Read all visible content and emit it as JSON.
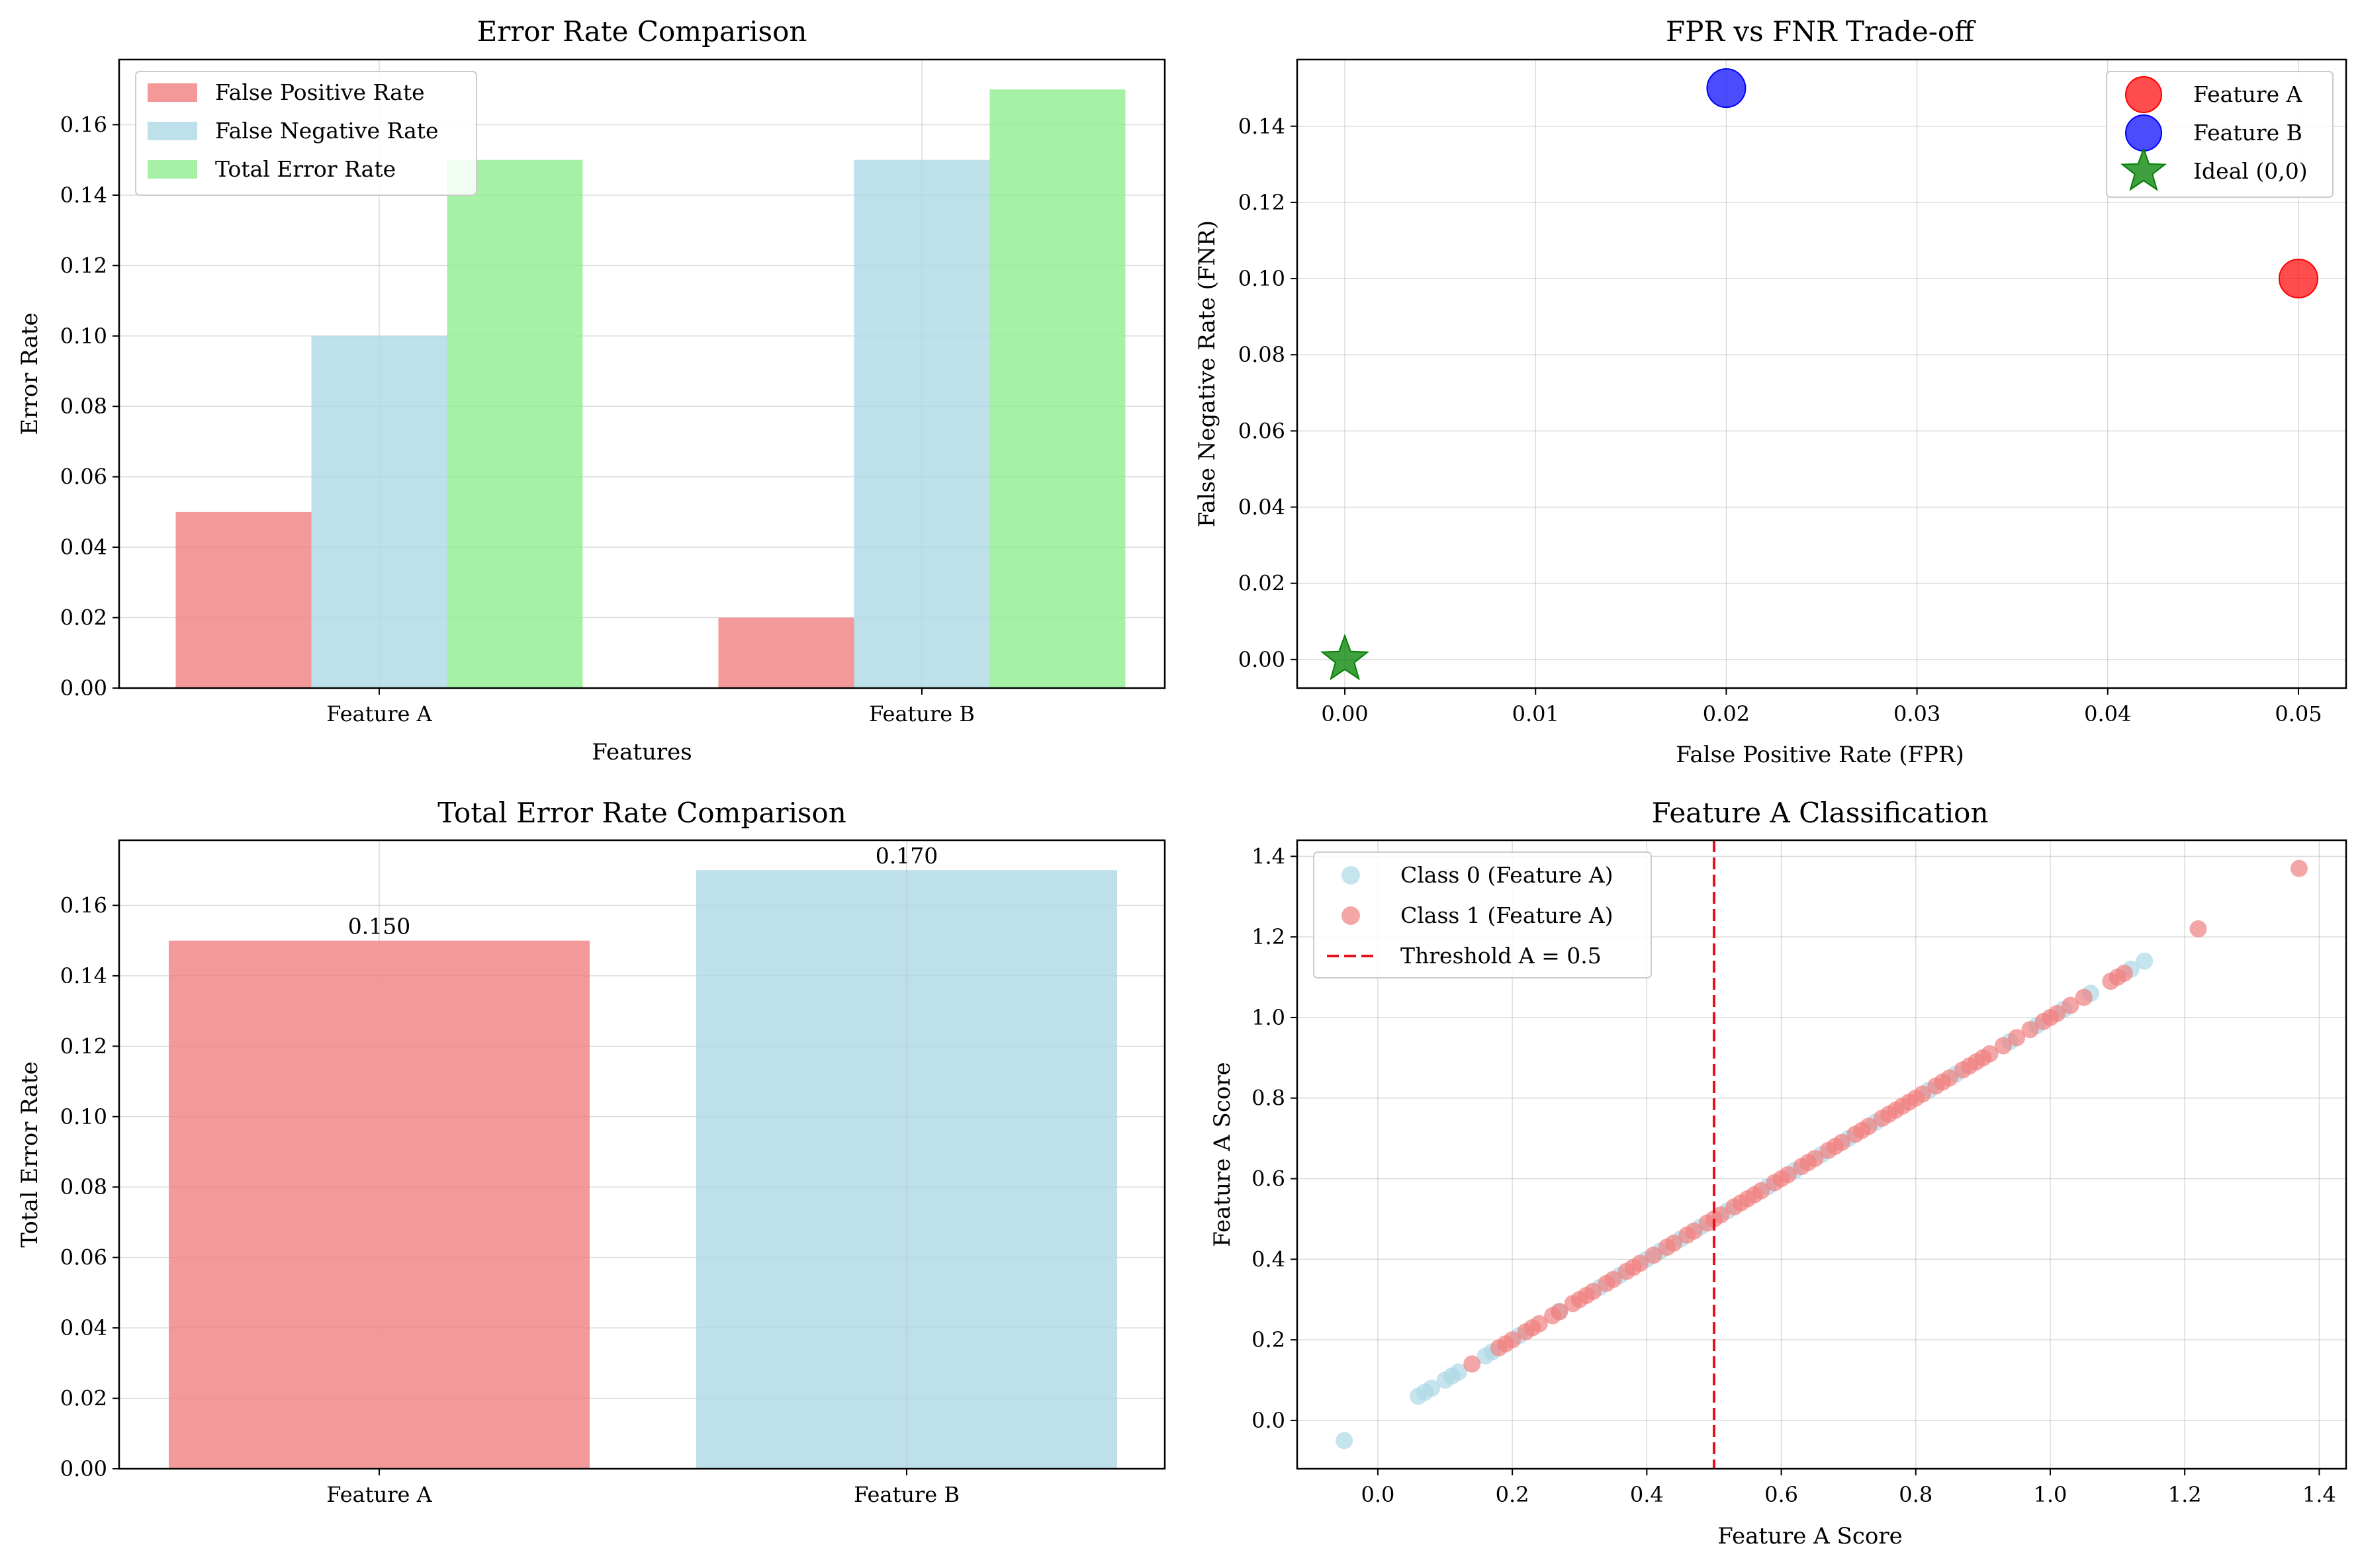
{
  "colors": {
    "fpr": "#f08080",
    "fnr": "#add8e6",
    "total": "#90ee90",
    "featureA": "#ff0000",
    "featureB": "#0000ff",
    "ideal": "#008000",
    "threshold": "#e8101a"
  },
  "chart_data": [
    {
      "type": "bar",
      "title": "Error Rate Comparison",
      "xlabel": "Features",
      "ylabel": "Error Rate",
      "categories": [
        "Feature A",
        "Feature B"
      ],
      "series": [
        {
          "name": "False Positive Rate",
          "values": [
            0.05,
            0.02
          ]
        },
        {
          "name": "False Negative Rate",
          "values": [
            0.1,
            0.15
          ]
        },
        {
          "name": "Total Error Rate",
          "values": [
            0.15,
            0.17
          ]
        }
      ],
      "ylim": [
        0,
        0.1785
      ],
      "yticks": [
        0.0,
        0.02,
        0.04,
        0.06,
        0.08,
        0.1,
        0.12,
        0.14,
        0.16
      ],
      "grid": true,
      "legend": "top-left"
    },
    {
      "type": "scatter",
      "title": "FPR vs FNR Trade-off",
      "xlabel": "False Positive Rate (FPR)",
      "ylabel": "False Negative Rate (FNR)",
      "points": [
        {
          "name": "Feature A",
          "x": 0.05,
          "y": 0.1,
          "marker": "circle"
        },
        {
          "name": "Feature B",
          "x": 0.02,
          "y": 0.15,
          "marker": "circle"
        },
        {
          "name": "Ideal (0,0)",
          "x": 0.0,
          "y": 0.0,
          "marker": "star"
        }
      ],
      "xlim": [
        -0.0025,
        0.0525
      ],
      "ylim": [
        -0.0075,
        0.1575
      ],
      "xticks": [
        0.0,
        0.01,
        0.02,
        0.03,
        0.04,
        0.05
      ],
      "yticks": [
        0.0,
        0.02,
        0.04,
        0.06,
        0.08,
        0.1,
        0.12,
        0.14
      ],
      "grid": true,
      "legend": "top-right"
    },
    {
      "type": "bar",
      "title": "Total Error Rate Comparison",
      "xlabel": "",
      "ylabel": "Total Error Rate",
      "categories": [
        "Feature A",
        "Feature B"
      ],
      "values": [
        0.15,
        0.17
      ],
      "value_labels": [
        "0.150",
        "0.170"
      ],
      "ylim": [
        0,
        0.1785
      ],
      "yticks": [
        0.0,
        0.02,
        0.04,
        0.06,
        0.08,
        0.1,
        0.12,
        0.14,
        0.16
      ],
      "grid": true
    },
    {
      "type": "scatter",
      "title": "Feature A Classification",
      "xlabel": "Feature A Score",
      "ylabel": "Feature A Score",
      "series": [
        {
          "name": "Class 0 (Feature A)",
          "x": [
            -0.05,
            0.06,
            0.07,
            0.08,
            0.1,
            0.11,
            0.12,
            0.16,
            0.17,
            0.21,
            0.27,
            0.33,
            0.36,
            0.4,
            0.42,
            0.45,
            0.48,
            0.52,
            0.58,
            0.62,
            0.66,
            0.7,
            0.74,
            0.82,
            0.86,
            0.94,
            0.98,
            1.02,
            1.06,
            1.12,
            1.14
          ]
        },
        {
          "name": "Class 1 (Feature A)",
          "x": [
            0.14,
            0.18,
            0.19,
            0.2,
            0.22,
            0.23,
            0.24,
            0.26,
            0.27,
            0.29,
            0.3,
            0.31,
            0.32,
            0.34,
            0.35,
            0.37,
            0.38,
            0.39,
            0.41,
            0.43,
            0.44,
            0.46,
            0.47,
            0.49,
            0.5,
            0.51,
            0.53,
            0.54,
            0.55,
            0.56,
            0.57,
            0.59,
            0.6,
            0.61,
            0.63,
            0.64,
            0.65,
            0.67,
            0.68,
            0.69,
            0.71,
            0.72,
            0.73,
            0.75,
            0.76,
            0.77,
            0.78,
            0.79,
            0.8,
            0.81,
            0.83,
            0.84,
            0.85,
            0.87,
            0.88,
            0.89,
            0.9,
            0.91,
            0.93,
            0.95,
            0.97,
            0.99,
            1.0,
            1.01,
            1.03,
            1.05,
            1.09,
            1.1,
            1.11,
            1.22,
            1.37
          ]
        }
      ],
      "threshold": {
        "name": "Threshold A = 0.5",
        "x": 0.5
      },
      "xlim": [
        -0.12,
        1.44
      ],
      "ylim": [
        -0.12,
        1.44
      ],
      "xticks": [
        0.0,
        0.2,
        0.4,
        0.6,
        0.8,
        1.0,
        1.2,
        1.4
      ],
      "yticks": [
        0.0,
        0.2,
        0.4,
        0.6,
        0.8,
        1.0,
        1.2,
        1.4
      ],
      "grid": true,
      "legend": "top-left"
    }
  ]
}
